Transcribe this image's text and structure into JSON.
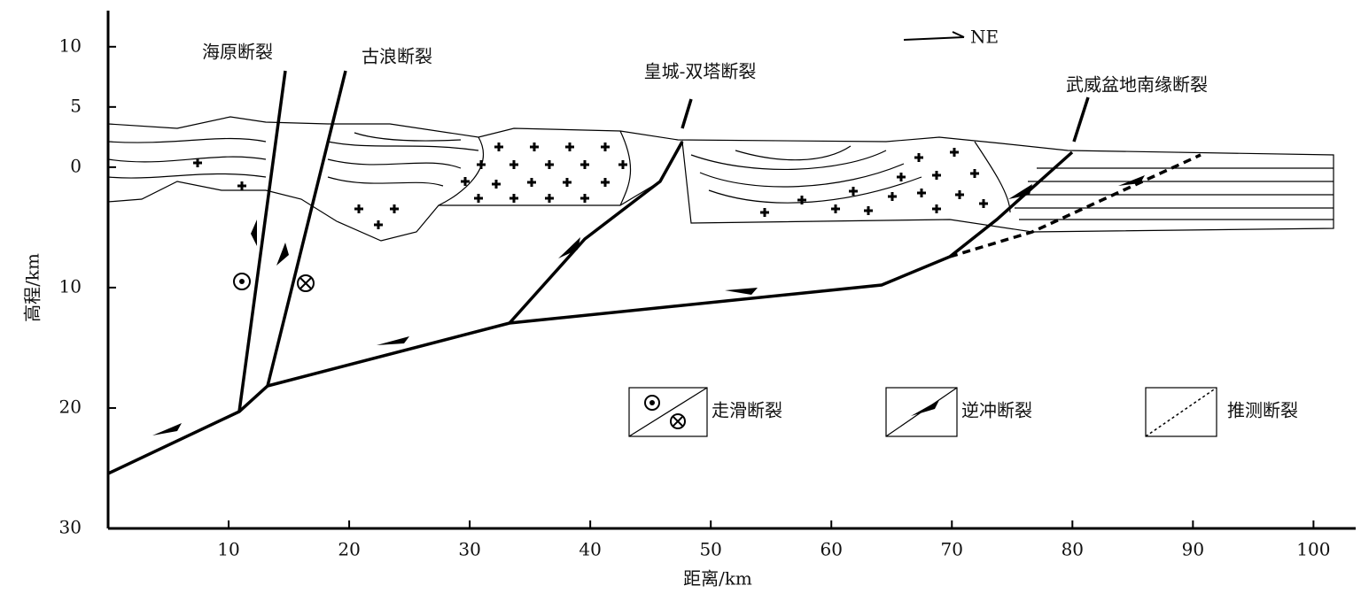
{
  "axes": {
    "xlabel": "距离/km",
    "ylabel": "高程/km",
    "xlim": [
      0,
      103.5
    ],
    "ylim": [
      -30,
      13
    ],
    "xticks": [
      10,
      20,
      30,
      40,
      50,
      60,
      70,
      80,
      90,
      100
    ],
    "yticks": [
      10,
      5,
      0,
      {
        "value": -10,
        "label": "10"
      },
      {
        "value": -20,
        "label": "20"
      },
      {
        "value": -30,
        "label": "30"
      }
    ]
  },
  "faults": [
    {
      "label": "海原断裂"
    },
    {
      "label": "古浪断裂"
    },
    {
      "label": "皇城-双塔断裂"
    },
    {
      "label": "武威盆地南缘断裂"
    }
  ],
  "direction": "NE",
  "legend": [
    "走滑断裂",
    "逆冲断裂",
    "推测断裂"
  ]
}
